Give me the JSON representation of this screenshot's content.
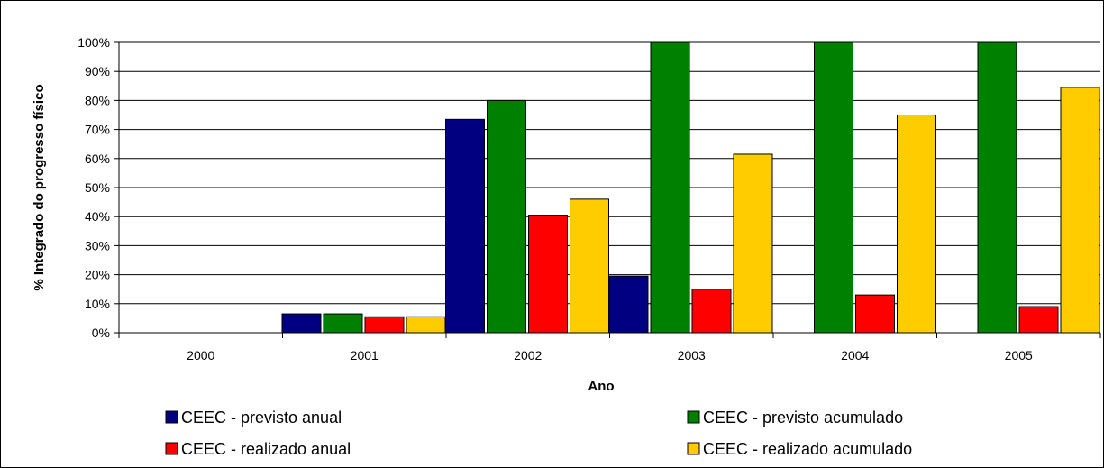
{
  "chart_data": {
    "type": "bar",
    "title": "",
    "xlabel": "Ano",
    "ylabel": "% Integrado do progresso físico",
    "categories": [
      "2000",
      "2001",
      "2002",
      "2003",
      "2004",
      "2005"
    ],
    "ylim": [
      0,
      100
    ],
    "yticks": [
      "0%",
      "10%",
      "20%",
      "30%",
      "40%",
      "50%",
      "60%",
      "70%",
      "80%",
      "90%",
      "100%"
    ],
    "grid": true,
    "legend_position": "bottom",
    "series": [
      {
        "name": "CEEC - previsto anual",
        "color": "#000080",
        "values": [
          0,
          6.5,
          73.5,
          19.5,
          0,
          0
        ]
      },
      {
        "name": "CEEC - previsto acumulado",
        "color": "#008000",
        "values": [
          0,
          6.5,
          80,
          100,
          100,
          100
        ]
      },
      {
        "name": "CEEC - realizado anual",
        "color": "#ff0000",
        "values": [
          0,
          5.5,
          40.5,
          15,
          13,
          9
        ]
      },
      {
        "name": "CEEC - realizado acumulado",
        "color": "#ffcc00",
        "values": [
          0,
          5.5,
          46,
          61.5,
          75,
          84.5
        ]
      }
    ]
  }
}
